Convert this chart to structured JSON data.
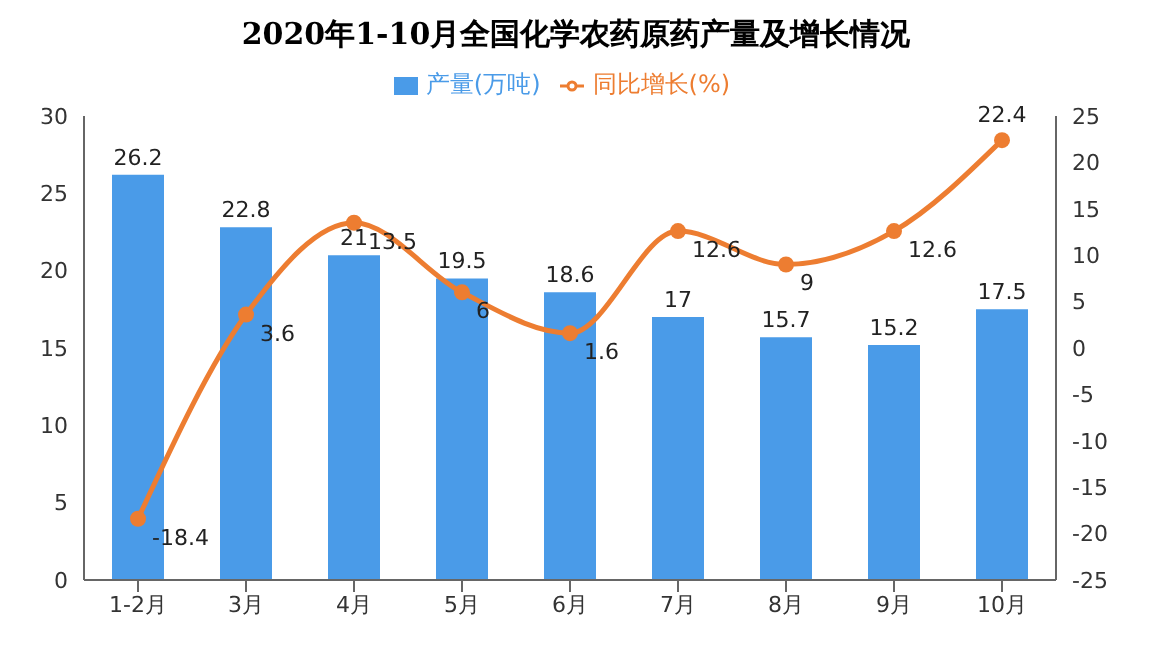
{
  "chart_data": {
    "type": "bar",
    "title": "2020年1-10月全国化学农药原药产量及增长情况",
    "categories": [
      "1-2月",
      "3月",
      "4月",
      "5月",
      "6月",
      "7月",
      "8月",
      "9月",
      "10月"
    ],
    "series": [
      {
        "name": "产量(万吨)",
        "color": "#4a9be8",
        "values": [
          26.2,
          22.8,
          21,
          19.5,
          18.6,
          17,
          15.7,
          15.2,
          17.5
        ]
      },
      {
        "name": "同比增长(%)",
        "type": "line",
        "axis": "y2",
        "color": "#ed7d31",
        "values": [
          -18.4,
          3.6,
          13.5,
          6,
          1.6,
          12.6,
          9,
          12.6,
          22.4
        ]
      }
    ],
    "ylim": [
      0,
      30
    ],
    "yticks": [
      0,
      5,
      10,
      15,
      20,
      25,
      30
    ],
    "y2lim": [
      -25,
      25
    ],
    "y2ticks": [
      -25,
      -20,
      -15,
      -10,
      -5,
      0,
      5,
      10,
      15,
      20,
      25
    ],
    "data_labels": true,
    "legend": "top",
    "marker": "circle"
  }
}
